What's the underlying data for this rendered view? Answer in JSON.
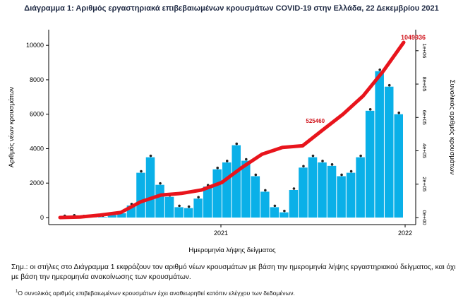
{
  "title": "Διάγραμμα 1: Αριθμός εργαστηριακά επιβεβαιωμένων κρουσμάτων COVID-19 στην Ελλάδα, 22 Δεκεμβρίου 2021",
  "note_main": "Σημ.: οι στήλες στο Διάγραμμα 1 εκφράζουν τον αριθμό νέων κρουσμάτων με βάση την ημερομηνία λήψης εργαστηριακού δείγματος, και όχι με βάση την ημερομηνία ανακοίνωσης των κρουσμάτων.",
  "footnote_marker": "1",
  "footnote": "Ο συνολικός αριθμός επιβεβαιωμένων κρουσμάτων έχει αναθεωρηθεί κατόπιν ελέγχου των δεδομένων.",
  "colors": {
    "bars": "#0ab0e8",
    "cumulative": "#e8141c",
    "dots": "#222222",
    "label_red": "#d0141c"
  },
  "chart_data": {
    "type": "bar",
    "xlabel": "Ημερομηνία λήψης δείγματος",
    "ylabel_left": "Αριθμός νέων κρουσμάτων",
    "ylabel_right": "Συνολικός αριθμός κρουσμάτων",
    "x_ticks": [
      "2021",
      "2022"
    ],
    "y_left_ticks": [
      "0",
      "2000",
      "4000",
      "6000",
      "8000",
      "10000"
    ],
    "y_left_range": [
      0,
      10500
    ],
    "y_right_ticks": [
      "0e+00",
      "2e+05",
      "4e+05",
      "6e+05",
      "8e+05",
      "1e+06"
    ],
    "y_right_range": [
      0,
      1050000
    ],
    "grid": false,
    "annotations": [
      {
        "text": "1049936",
        "series": "cumulative",
        "at": "last"
      },
      {
        "text": "525460",
        "series": "cumulative",
        "at": "2021-08"
      }
    ],
    "series": [
      {
        "kind": "bar",
        "x": [
          "2020-03",
          "2020-04",
          "2020-05",
          "2020-06",
          "2020-07",
          "2020-08",
          "2020-09",
          "2020-10",
          "2020-11a",
          "2020-11b",
          "2020-12a",
          "2020-12b",
          "2021-01a",
          "2021-01b",
          "2021-02a",
          "2021-02b",
          "2021-03a",
          "2021-03b",
          "2021-04a",
          "2021-04b",
          "2021-05a",
          "2021-05b",
          "2021-06a",
          "2021-06b",
          "2021-07a",
          "2021-07b",
          "2021-08a",
          "2021-08b",
          "2021-09a",
          "2021-09b",
          "2021-10a",
          "2021-10b",
          "2021-11a",
          "2021-11b",
          "2021-12a",
          "2021-12b"
        ],
        "values": [
          20,
          50,
          10,
          10,
          30,
          150,
          250,
          700,
          2600,
          3500,
          1900,
          1200,
          600,
          550,
          1100,
          1800,
          2800,
          3200,
          4200,
          3300,
          2400,
          1500,
          600,
          300,
          1600,
          2900,
          3500,
          3200,
          3000,
          2400,
          2600,
          3500,
          6200,
          8500,
          7600,
          6000
        ]
      },
      {
        "kind": "line",
        "x": [
          "2020-03",
          "2020-06",
          "2020-09",
          "2020-10",
          "2020-11",
          "2020-12",
          "2021-01",
          "2021-02",
          "2021-03",
          "2021-04",
          "2021-05",
          "2021-06",
          "2021-07",
          "2021-08",
          "2021-09",
          "2021-10",
          "2021-11",
          "2021-12"
        ],
        "values": [
          0,
          3000,
          15000,
          30000,
          95000,
          135000,
          145000,
          165000,
          210000,
          300000,
          380000,
          420000,
          430000,
          525460,
          620000,
          730000,
          880000,
          1049936
        ]
      }
    ]
  }
}
